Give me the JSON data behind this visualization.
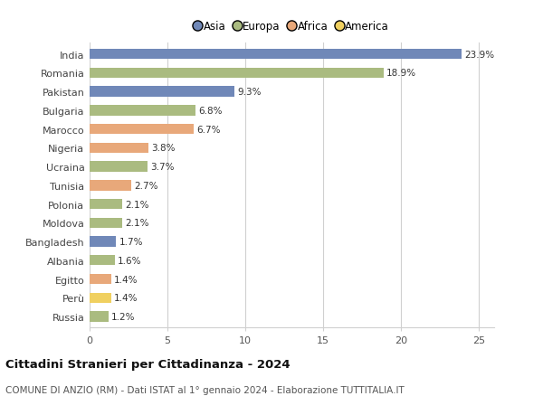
{
  "countries": [
    "India",
    "Romania",
    "Pakistan",
    "Bulgaria",
    "Marocco",
    "Nigeria",
    "Ucraina",
    "Tunisia",
    "Polonia",
    "Moldova",
    "Bangladesh",
    "Albania",
    "Egitto",
    "Perù",
    "Russia"
  ],
  "values": [
    23.9,
    18.9,
    9.3,
    6.8,
    6.7,
    3.8,
    3.7,
    2.7,
    2.1,
    2.1,
    1.7,
    1.6,
    1.4,
    1.4,
    1.2
  ],
  "continents": [
    "Asia",
    "Europa",
    "Asia",
    "Europa",
    "Africa",
    "Africa",
    "Europa",
    "Africa",
    "Europa",
    "Europa",
    "Asia",
    "Europa",
    "Africa",
    "America",
    "Europa"
  ],
  "colors": {
    "Asia": "#7088b8",
    "Europa": "#aabb80",
    "Africa": "#e8a87a",
    "America": "#f0d060"
  },
  "xlim": [
    0,
    26
  ],
  "xticks": [
    0,
    5,
    10,
    15,
    20,
    25
  ],
  "title": "Cittadini Stranieri per Cittadinanza - 2024",
  "subtitle": "COMUNE DI ANZIO (RM) - Dati ISTAT al 1° gennaio 2024 - Elaborazione TUTTITALIA.IT",
  "background_color": "#ffffff",
  "grid_color": "#d0d0d0",
  "bar_height": 0.55,
  "label_fontsize": 7.5,
  "ytick_fontsize": 8.0,
  "xtick_fontsize": 8.0,
  "legend_fontsize": 8.5,
  "title_fontsize": 9.5,
  "subtitle_fontsize": 7.5
}
